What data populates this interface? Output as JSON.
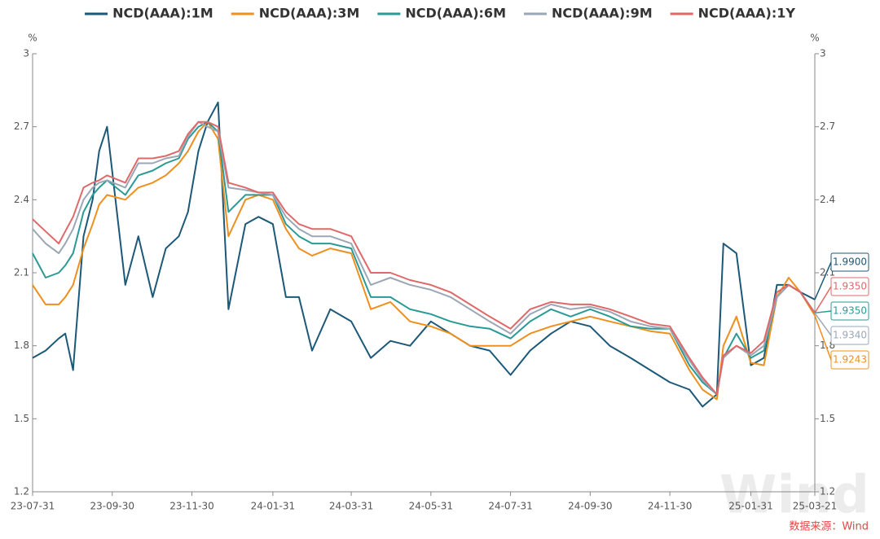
{
  "chart_data": {
    "type": "line",
    "x": [
      "23-07-31",
      "23-08-10",
      "23-08-20",
      "23-08-25",
      "23-08-31",
      "23-09-08",
      "23-09-15",
      "23-09-20",
      "23-09-26",
      "23-10-10",
      "23-10-20",
      "23-10-31",
      "23-11-10",
      "23-11-20",
      "23-11-27",
      "23-12-05",
      "23-12-12",
      "23-12-20",
      "23-12-28",
      "24-01-10",
      "24-01-20",
      "24-01-31",
      "24-02-10",
      "24-02-20",
      "24-03-01",
      "24-03-15",
      "24-03-31",
      "24-04-15",
      "24-04-30",
      "24-05-15",
      "24-05-31",
      "24-06-15",
      "24-06-30",
      "24-07-15",
      "24-07-31",
      "24-08-15",
      "24-08-31",
      "24-09-15",
      "24-09-30",
      "24-10-15",
      "24-10-31",
      "24-11-15",
      "24-11-30",
      "24-12-15",
      "24-12-25",
      "25-01-05",
      "25-01-10",
      "25-01-20",
      "25-01-31",
      "25-02-10",
      "25-02-20",
      "25-03-01",
      "25-03-10",
      "25-03-21"
    ],
    "xlim": [
      "23-07-31",
      "25-03-21"
    ],
    "xticks": [
      "23-07-31",
      "23-09-30",
      "23-11-30",
      "24-01-31",
      "24-03-31",
      "24-05-31",
      "24-07-31",
      "24-09-30",
      "24-11-30",
      "25-01-31",
      "25-03-21"
    ],
    "ylim": [
      1.2,
      3
    ],
    "yticks": [
      1.2,
      1.5,
      1.8,
      2.1,
      2.4,
      2.7,
      3
    ],
    "y_unit": "%",
    "y2lim": [
      1.2,
      3
    ],
    "y2ticks": [
      1.2,
      1.5,
      1.8,
      2.1,
      2.4,
      2.7,
      3
    ],
    "y2_unit": "%",
    "legend": "top",
    "series": [
      {
        "name": "NCD(AAA):1M",
        "color": "#1c5878",
        "end_label": "1.9900",
        "values": [
          1.75,
          1.78,
          1.83,
          1.85,
          1.7,
          2.25,
          2.4,
          2.6,
          2.7,
          2.05,
          2.25,
          2.0,
          2.2,
          2.25,
          2.35,
          2.6,
          2.72,
          2.8,
          1.95,
          2.3,
          2.33,
          2.3,
          2.0,
          2.0,
          1.78,
          1.95,
          1.9,
          1.75,
          1.82,
          1.8,
          1.9,
          1.85,
          1.8,
          1.78,
          1.68,
          1.78,
          1.85,
          1.9,
          1.88,
          1.8,
          1.75,
          1.7,
          1.65,
          1.62,
          1.55,
          1.6,
          2.22,
          2.18,
          1.72,
          1.75,
          2.05,
          2.05,
          2.02,
          1.99
        ]
      },
      {
        "name": "NCD(AAA):3M",
        "color": "#ef8f1d",
        "end_label": "1.9243",
        "values": [
          2.05,
          1.97,
          1.97,
          2.0,
          2.05,
          2.2,
          2.3,
          2.38,
          2.42,
          2.4,
          2.45,
          2.47,
          2.5,
          2.55,
          2.6,
          2.68,
          2.72,
          2.65,
          2.25,
          2.4,
          2.42,
          2.4,
          2.28,
          2.2,
          2.17,
          2.2,
          2.18,
          1.95,
          1.98,
          1.9,
          1.88,
          1.85,
          1.8,
          1.8,
          1.8,
          1.85,
          1.88,
          1.9,
          1.92,
          1.9,
          1.88,
          1.86,
          1.85,
          1.7,
          1.62,
          1.58,
          1.8,
          1.92,
          1.73,
          1.72,
          2.0,
          2.08,
          2.02,
          1.9243
        ]
      },
      {
        "name": "NCD(AAA):6M",
        "color": "#2a9a96",
        "end_label": "1.9350",
        "values": [
          2.18,
          2.08,
          2.1,
          2.13,
          2.18,
          2.35,
          2.42,
          2.45,
          2.48,
          2.42,
          2.5,
          2.52,
          2.55,
          2.57,
          2.65,
          2.7,
          2.72,
          2.68,
          2.35,
          2.42,
          2.42,
          2.42,
          2.3,
          2.25,
          2.22,
          2.22,
          2.2,
          2.0,
          2.0,
          1.95,
          1.93,
          1.9,
          1.88,
          1.87,
          1.83,
          1.9,
          1.95,
          1.92,
          1.95,
          1.92,
          1.88,
          1.87,
          1.87,
          1.72,
          1.65,
          1.6,
          1.75,
          1.85,
          1.75,
          1.78,
          2.0,
          2.05,
          2.02,
          1.935
        ]
      },
      {
        "name": "NCD(AAA):9M",
        "color": "#9ba7b5",
        "end_label": "1.9340",
        "values": [
          2.28,
          2.22,
          2.18,
          2.22,
          2.28,
          2.4,
          2.45,
          2.47,
          2.48,
          2.45,
          2.55,
          2.55,
          2.57,
          2.58,
          2.66,
          2.72,
          2.7,
          2.68,
          2.45,
          2.44,
          2.43,
          2.42,
          2.33,
          2.28,
          2.25,
          2.25,
          2.22,
          2.05,
          2.08,
          2.05,
          2.03,
          2.0,
          1.95,
          1.9,
          1.85,
          1.93,
          1.97,
          1.95,
          1.96,
          1.94,
          1.9,
          1.88,
          1.87,
          1.74,
          1.66,
          1.6,
          1.75,
          1.8,
          1.76,
          1.8,
          2.0,
          2.05,
          2.02,
          1.934
        ]
      },
      {
        "name": "NCD(AAA):1Y",
        "color": "#e06868",
        "end_label": "1.9350",
        "values": [
          2.32,
          2.27,
          2.22,
          2.27,
          2.33,
          2.45,
          2.47,
          2.48,
          2.5,
          2.47,
          2.57,
          2.57,
          2.58,
          2.6,
          2.67,
          2.72,
          2.72,
          2.7,
          2.47,
          2.45,
          2.43,
          2.43,
          2.35,
          2.3,
          2.28,
          2.28,
          2.25,
          2.1,
          2.1,
          2.07,
          2.05,
          2.02,
          1.97,
          1.92,
          1.87,
          1.95,
          1.98,
          1.97,
          1.97,
          1.95,
          1.92,
          1.89,
          1.88,
          1.75,
          1.67,
          1.6,
          1.76,
          1.8,
          1.77,
          1.82,
          2.02,
          2.05,
          2.02,
          1.935
        ]
      }
    ],
    "watermark": "Wind",
    "source": "数据来源：Wind"
  }
}
